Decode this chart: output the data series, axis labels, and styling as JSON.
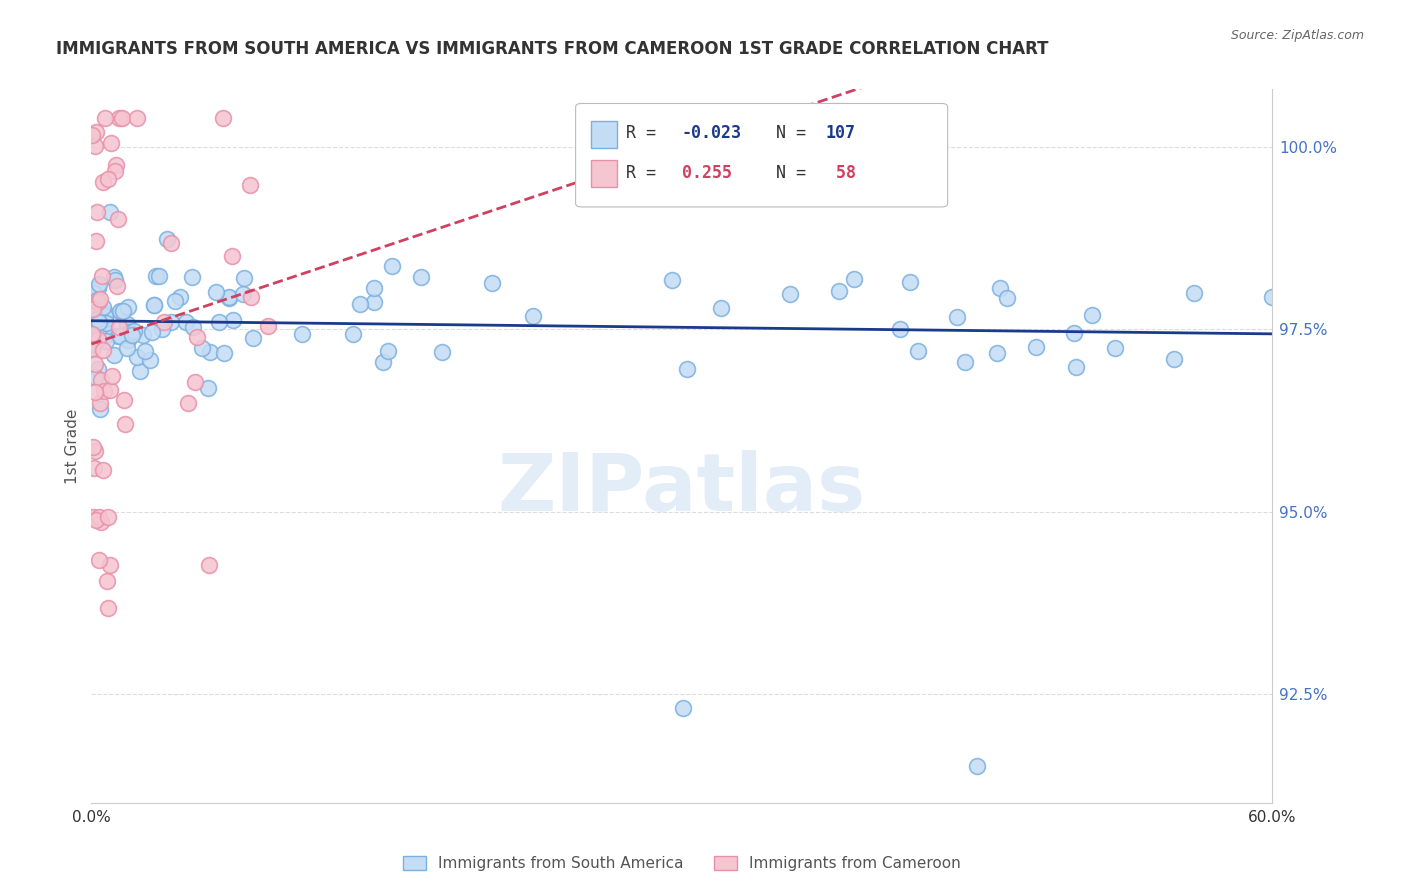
{
  "title": "IMMIGRANTS FROM SOUTH AMERICA VS IMMIGRANTS FROM CAMEROON 1ST GRADE CORRELATION CHART",
  "source": "Source: ZipAtlas.com",
  "ylabel": "1st Grade",
  "watermark": "ZIPatlas",
  "blue_R": -0.023,
  "blue_N": 107,
  "pink_R": 0.255,
  "pink_N": 58,
  "blue_face_color": "#c5dcf5",
  "blue_edge_color": "#7ab0e0",
  "pink_face_color": "#f5c5d0",
  "pink_edge_color": "#e890a8",
  "blue_line_color": "#1a3a8c",
  "pink_line_color": "#d04060",
  "right_yticks": [
    92.5,
    95.0,
    97.5,
    100.0
  ],
  "right_ytick_labels": [
    "92.5%",
    "95.0%",
    "97.5%",
    "100.0%"
  ],
  "xlim": [
    0,
    60
  ],
  "ylim": [
    91.0,
    100.8
  ],
  "background_color": "#ffffff",
  "title_color": "#333333",
  "right_axis_color": "#4472c4",
  "watermark_color": "#c0d8f0",
  "legend_label_blue": "Immigrants from South America",
  "legend_label_pink": "Immigrants from Cameroon"
}
